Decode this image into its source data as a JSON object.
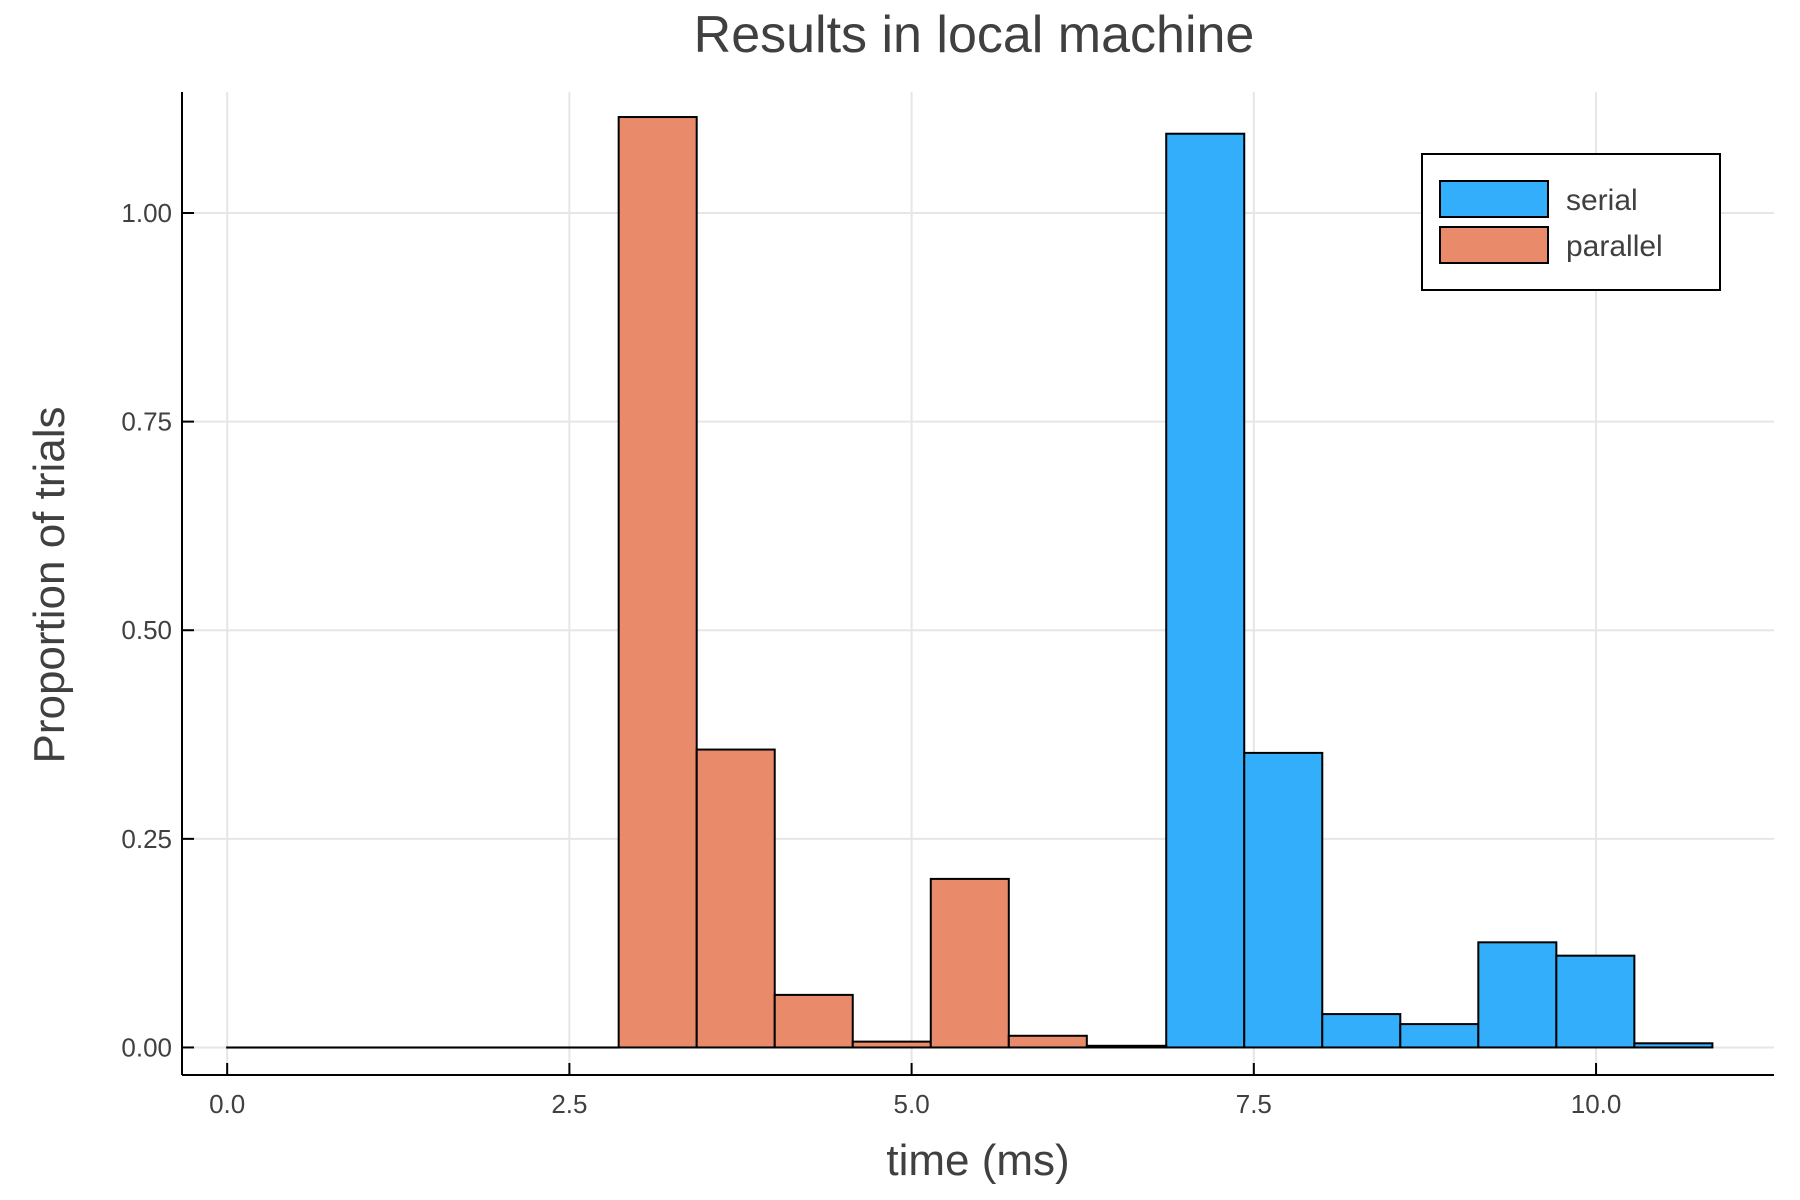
{
  "chart_data": {
    "type": "bar",
    "title": "Results in local machine",
    "xlabel": "time (ms)",
    "ylabel": "Proportion of trials",
    "xlim": [
      -0.33,
      11.3
    ],
    "ylim": [
      -0.033,
      1.145
    ],
    "xticks": [
      0.0,
      2.5,
      5.0,
      7.5,
      10.0
    ],
    "xtick_labels": [
      "0.0",
      "2.5",
      "5.0",
      "7.5",
      "10.0"
    ],
    "yticks": [
      0.0,
      0.25,
      0.5,
      0.75,
      1.0
    ],
    "ytick_labels": [
      "0.00",
      "0.25",
      "0.50",
      "0.75",
      "1.00"
    ],
    "grid": true,
    "legend_position": "top-right",
    "series": [
      {
        "name": "serial",
        "color": "#33aefa",
        "bins": [
          {
            "x0": 6.86,
            "x1": 7.43,
            "y": 1.095
          },
          {
            "x0": 7.43,
            "x1": 8.0,
            "y": 0.353
          },
          {
            "x0": 8.0,
            "x1": 8.57,
            "y": 0.04
          },
          {
            "x0": 8.57,
            "x1": 9.14,
            "y": 0.028
          },
          {
            "x0": 9.14,
            "x1": 9.71,
            "y": 0.126
          },
          {
            "x0": 9.71,
            "x1": 10.28,
            "y": 0.11
          },
          {
            "x0": 10.28,
            "x1": 10.85,
            "y": 0.005
          }
        ]
      },
      {
        "name": "parallel",
        "color": "#e98b6b",
        "bins": [
          {
            "x0": 0.0,
            "x1": 2.86,
            "y": 0.0
          },
          {
            "x0": 2.86,
            "x1": 3.43,
            "y": 1.115
          },
          {
            "x0": 3.43,
            "x1": 4.0,
            "y": 0.357
          },
          {
            "x0": 4.0,
            "x1": 4.57,
            "y": 0.063
          },
          {
            "x0": 4.57,
            "x1": 5.14,
            "y": 0.007
          },
          {
            "x0": 5.14,
            "x1": 5.71,
            "y": 0.202
          },
          {
            "x0": 5.71,
            "x1": 6.28,
            "y": 0.014
          },
          {
            "x0": 6.28,
            "x1": 6.86,
            "y": 0.002
          }
        ]
      }
    ]
  }
}
